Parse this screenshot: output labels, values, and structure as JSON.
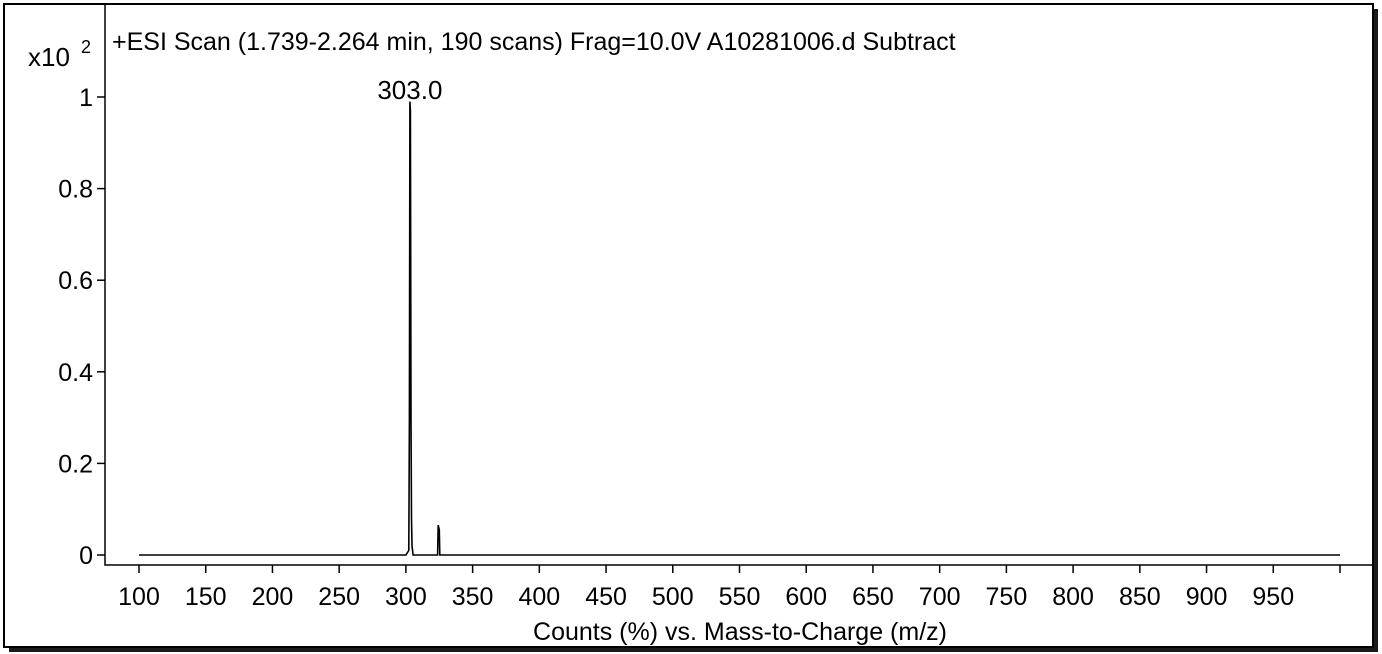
{
  "chart_data": {
    "type": "line",
    "title": "+ESI Scan (1.739-2.264 min, 190 scans) Frag=10.0V A10281006.d  Subtract",
    "xlabel": "Counts (%) vs. Mass-to-Charge (m/z)",
    "ylabel": "",
    "y_multiplier_label": "x10",
    "y_multiplier_exponent": "2",
    "xlim": [
      90,
      1000
    ],
    "ylim": [
      0,
      1.05
    ],
    "x_ticks": [
      100,
      150,
      200,
      250,
      300,
      350,
      400,
      450,
      500,
      550,
      600,
      650,
      700,
      750,
      800,
      850,
      900,
      950
    ],
    "x_tick_labels": [
      "100",
      "150",
      "200",
      "250",
      "300",
      "350",
      "400",
      "450",
      "500",
      "550",
      "600",
      "650",
      "700",
      "750",
      "800",
      "850",
      "900",
      "950"
    ],
    "y_ticks": [
      0,
      0.2,
      0.4,
      0.6,
      0.8,
      1
    ],
    "y_tick_labels": [
      "0",
      "0.2",
      "0.4",
      "0.6",
      "0.8",
      "1"
    ],
    "peak_labels": [
      {
        "x": 303.0,
        "y": 1.0,
        "text": "303.0"
      }
    ],
    "series": [
      {
        "x": [
          100,
          300,
          302.2,
          302.6,
          303.0,
          303.4,
          303.8,
          304.2,
          304.6,
          305.4,
          306,
          323.8,
          324.2,
          324.6,
          325.0,
          325.4,
          326,
          1000
        ],
        "y": [
          0,
          0,
          0.01,
          0.3,
          0.99,
          0.97,
          0.3,
          0.08,
          0.02,
          0,
          0,
          0,
          0.065,
          0.06,
          0.055,
          0,
          0,
          0
        ]
      }
    ],
    "grid": false,
    "colors": {
      "line": "#000000",
      "axes": "#000000",
      "background": "#ffffff"
    }
  }
}
